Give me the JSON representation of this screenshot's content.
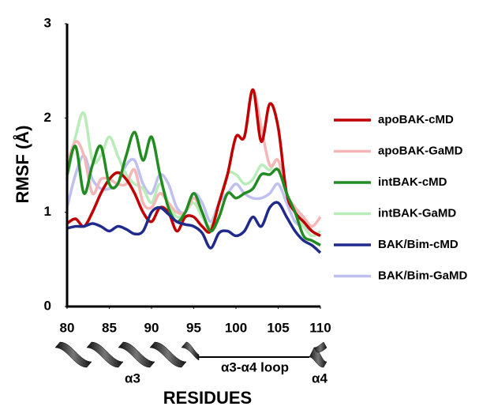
{
  "chart_data": {
    "type": "line",
    "x_label": "RESIDUES",
    "y_label": "RMSF (Å)",
    "x": [
      80,
      81,
      82,
      83,
      84,
      85,
      86,
      87,
      88,
      89,
      90,
      91,
      92,
      93,
      94,
      95,
      96,
      97,
      98,
      99,
      100,
      101,
      102,
      103,
      104,
      105,
      106,
      107,
      108,
      109,
      110
    ],
    "series": [
      {
        "name": "apoBAK-cMD",
        "color": "#c00000",
        "values": [
          0.88,
          0.93,
          0.85,
          1.0,
          1.2,
          1.35,
          1.42,
          1.35,
          1.2,
          1.0,
          0.9,
          1.05,
          1.0,
          0.8,
          0.95,
          0.95,
          0.85,
          0.8,
          1.1,
          1.4,
          1.8,
          1.8,
          2.3,
          1.75,
          2.15,
          1.9,
          1.2,
          1.0,
          0.9,
          0.8,
          0.75
        ]
      },
      {
        "name": "apoBAK-GaMD",
        "color": "#f4b6b6",
        "values": [
          1.5,
          1.75,
          1.6,
          1.2,
          1.35,
          1.35,
          1.3,
          1.3,
          1.45,
          1.1,
          1.05,
          1.2,
          1.1,
          1.0,
          1.0,
          1.15,
          1.0,
          0.8,
          1.1,
          1.4,
          1.8,
          1.8,
          2.3,
          1.9,
          1.5,
          1.55,
          1.2,
          1.05,
          0.95,
          0.85,
          0.95
        ]
      },
      {
        "name": "intBAK-cMD",
        "color": "#228b22",
        "values": [
          1.4,
          1.7,
          1.2,
          1.5,
          1.7,
          1.3,
          1.3,
          1.6,
          1.85,
          1.55,
          1.8,
          1.4,
          1.05,
          0.9,
          1.0,
          1.2,
          1.0,
          0.8,
          0.95,
          1.2,
          1.15,
          1.2,
          1.25,
          1.4,
          1.4,
          1.45,
          1.2,
          1.0,
          0.75,
          0.7,
          0.65
        ]
      },
      {
        "name": "intBAK-GaMD",
        "color": "#b8ecb8",
        "values": [
          1.35,
          1.8,
          2.05,
          1.55,
          1.6,
          1.8,
          1.6,
          1.4,
          1.3,
          1.25,
          1.1,
          1.3,
          1.1,
          0.95,
          1.0,
          1.1,
          0.95,
          0.85,
          1.1,
          1.4,
          1.4,
          1.3,
          1.35,
          1.5,
          1.45,
          1.55,
          1.2,
          1.0,
          0.85,
          0.75,
          0.8
        ]
      },
      {
        "name": "BAK/Bim-cMD",
        "color": "#1f2a8c",
        "values": [
          0.83,
          0.85,
          0.85,
          0.88,
          0.85,
          0.8,
          0.85,
          0.82,
          0.77,
          0.8,
          1.0,
          1.05,
          0.98,
          0.9,
          0.87,
          0.85,
          0.78,
          0.62,
          0.78,
          0.8,
          0.75,
          0.8,
          0.95,
          0.85,
          1.05,
          1.1,
          0.95,
          0.8,
          0.7,
          0.65,
          0.57
        ]
      },
      {
        "name": "BAK/Bim-GaMD",
        "color": "#c0c0f0",
        "values": [
          1.05,
          1.4,
          1.6,
          1.35,
          1.25,
          1.25,
          1.3,
          1.5,
          1.55,
          1.3,
          1.2,
          1.4,
          1.3,
          1.05,
          1.0,
          1.2,
          1.1,
          0.9,
          1.1,
          1.2,
          1.3,
          1.2,
          1.15,
          1.15,
          1.2,
          1.3,
          1.1,
          0.9,
          0.85,
          0.8,
          0.75
        ]
      }
    ],
    "xlim": [
      80,
      110
    ],
    "xticks": [
      80,
      85,
      90,
      95,
      100,
      105,
      110
    ],
    "ylim": [
      0,
      3
    ],
    "yticks": [
      0,
      1,
      2,
      3
    ],
    "grid": false,
    "legend": "right",
    "annotations": [
      "α3",
      "α3-α4 loop",
      "α4"
    ]
  }
}
